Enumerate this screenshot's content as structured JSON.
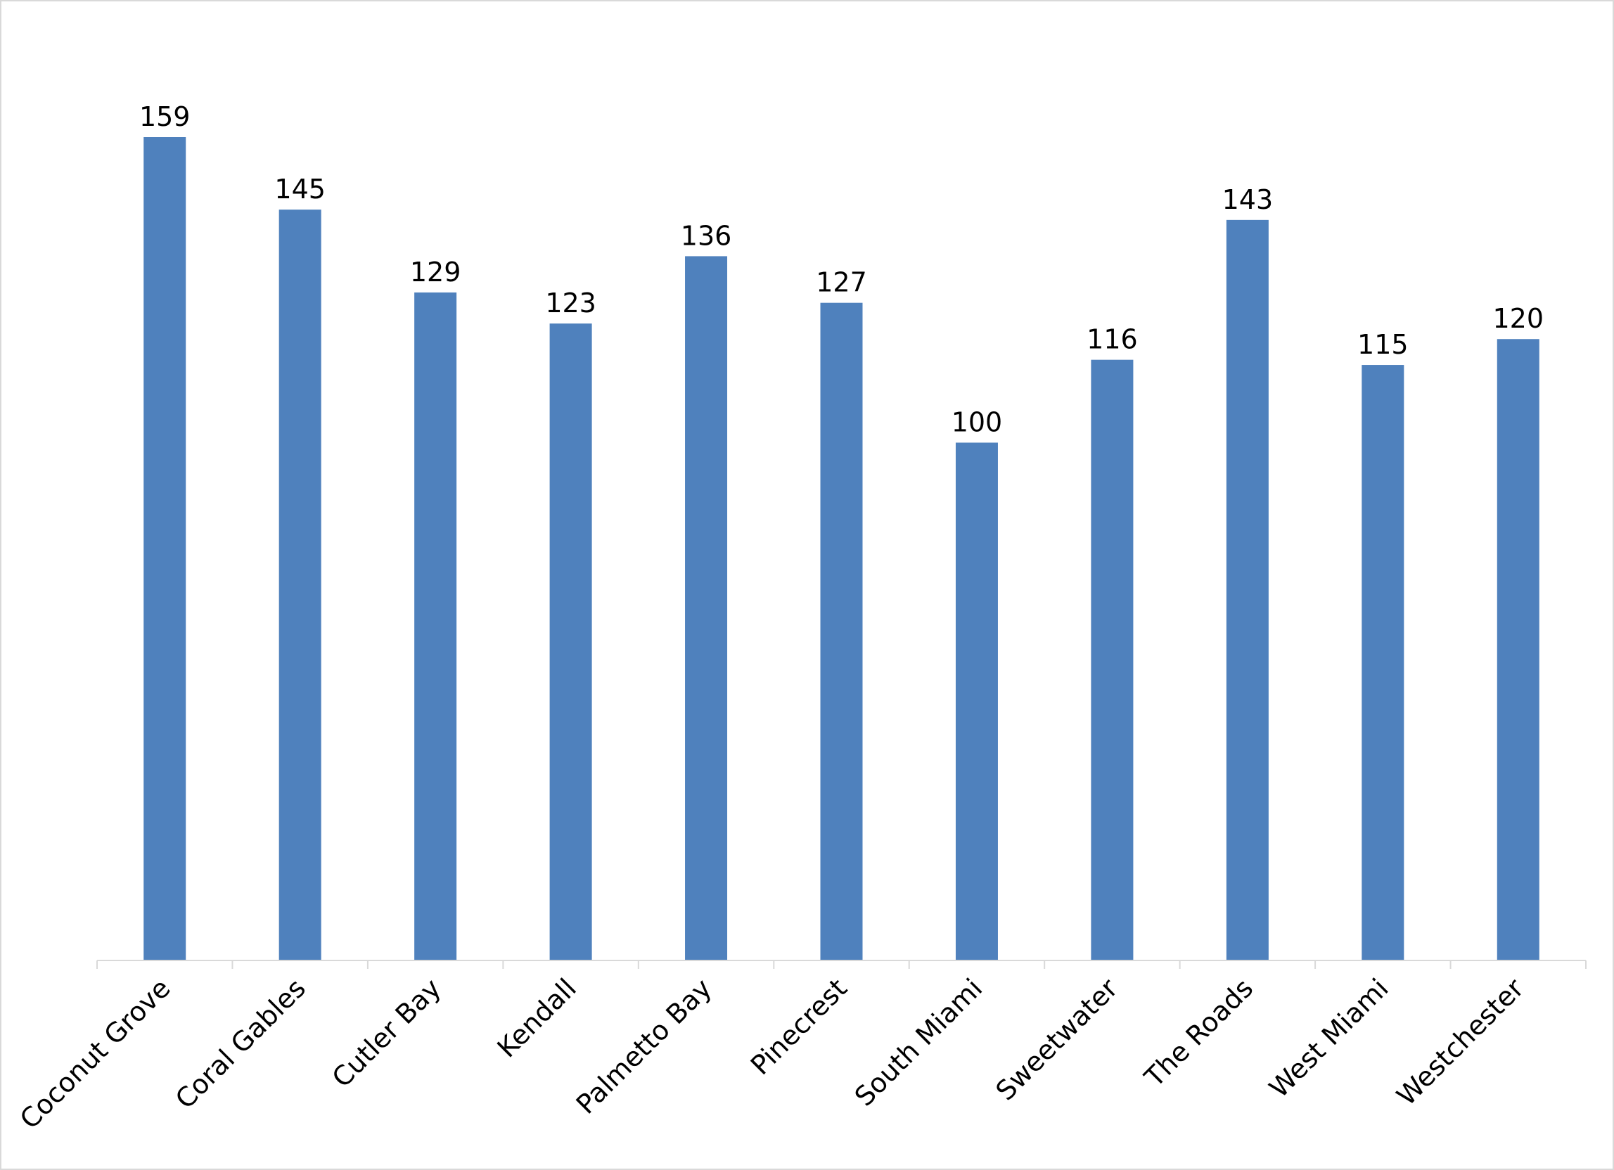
{
  "chart_data": {
    "type": "bar",
    "categories": [
      "Coconut Grove",
      "Coral Gables",
      "Cutler Bay",
      "Kendall",
      "Palmetto Bay",
      "Pinecrest",
      "South Miami",
      "Sweetwater",
      "The Roads",
      "West Miami",
      "Westchester"
    ],
    "values": [
      159,
      145,
      129,
      123,
      136,
      127,
      100,
      116,
      143,
      115,
      120
    ],
    "color": "#4f81bd",
    "data_labels": true
  }
}
